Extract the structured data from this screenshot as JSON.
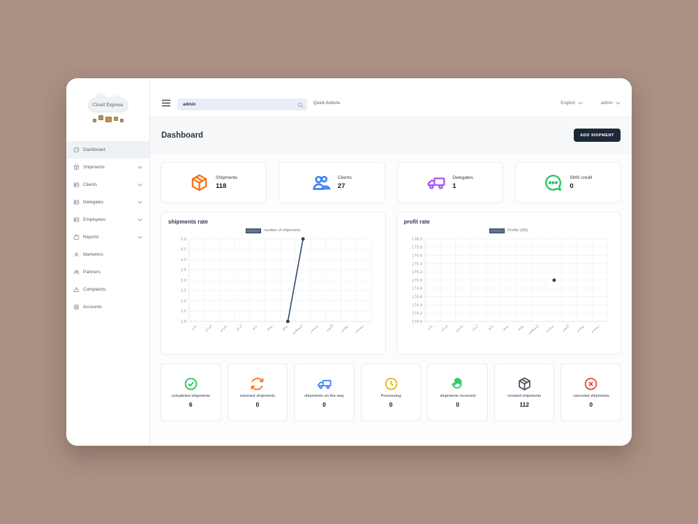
{
  "app": {
    "logo_text": "Cloud Express"
  },
  "topbar": {
    "search_value": "admin",
    "quick_actions_label": "Quick Actions",
    "language_label": "English",
    "user_label": "admin"
  },
  "sidebar": {
    "items": [
      {
        "label": "Dashboard",
        "icon": "dashboard-icon",
        "active": true,
        "has_submenu": false
      },
      {
        "label": "Shipments",
        "icon": "package-icon",
        "active": false,
        "has_submenu": true
      },
      {
        "label": "Clients",
        "icon": "id-card-icon",
        "active": false,
        "has_submenu": true
      },
      {
        "label": "Delegates",
        "icon": "id-card-icon",
        "active": false,
        "has_submenu": true
      },
      {
        "label": "Employees",
        "icon": "id-card-icon",
        "active": false,
        "has_submenu": true
      },
      {
        "label": "Reports",
        "icon": "briefcase-icon",
        "active": false,
        "has_submenu": true
      },
      {
        "label": "Marketers",
        "icon": "person-icon",
        "active": false,
        "has_submenu": false
      },
      {
        "label": "Partners",
        "icon": "users-icon",
        "active": false,
        "has_submenu": false
      },
      {
        "label": "Complaints",
        "icon": "warning-icon",
        "active": false,
        "has_submenu": false
      },
      {
        "label": "Accounts",
        "icon": "coins-icon",
        "active": false,
        "has_submenu": false
      }
    ]
  },
  "page_header": {
    "title": "Dashboard",
    "add_shipment_label": "ADD SHIPMENT",
    "add_button_color": "#1d2939"
  },
  "stat_cards": [
    {
      "label": "Shipments",
      "value": "118",
      "icon": "package-icon",
      "color": "#f97316"
    },
    {
      "label": "Clients",
      "value": "27",
      "icon": "users-icon",
      "color": "#3b82f6"
    },
    {
      "label": "Delegates",
      "value": "1",
      "icon": "truck-icon",
      "color": "#a855f7"
    },
    {
      "label": "SMS credit",
      "value": "0",
      "icon": "message-circle-icon",
      "color": "#22c55e"
    }
  ],
  "chart_data": [
    {
      "type": "line",
      "title": "shipments rate",
      "legend": "number of shipments",
      "legend_position": "top",
      "legend_color": "#64748b",
      "color": "#33476b",
      "grid": true,
      "xlabel": "",
      "ylabel": "",
      "categories": [
        "يناير",
        "فبراير",
        "مارس",
        "أبريل",
        "مايو",
        "يونيو",
        "يوليو",
        "أغسطس",
        "سبتمبر",
        "أكتوبر",
        "نوفمبر",
        "ديسمبر"
      ],
      "values": [
        null,
        null,
        null,
        null,
        null,
        null,
        1,
        5,
        null,
        null,
        null,
        null
      ],
      "yticks": [
        5.0,
        4.5,
        4.0,
        3.5,
        3.0,
        2.5,
        2.0,
        1.5,
        1.0
      ],
      "ylim": [
        1.0,
        5.0
      ]
    },
    {
      "type": "line",
      "title": "profit rate",
      "legend": "Profits (SR)",
      "legend_position": "top",
      "legend_color": "#64748b",
      "color": "#33476b",
      "grid": true,
      "xlabel": "",
      "ylabel": "",
      "categories": [
        "يناير",
        "فبراير",
        "مارس",
        "أبريل",
        "مايو",
        "يونيو",
        "يوليو",
        "أغسطس",
        "سبتمبر",
        "أكتوبر",
        "نوفمبر",
        "ديسمبر"
      ],
      "values": [
        null,
        null,
        null,
        null,
        null,
        null,
        null,
        null,
        175.0,
        null,
        null,
        null
      ],
      "yticks": [
        176.0,
        175.8,
        175.6,
        175.4,
        175.2,
        175.0,
        174.8,
        174.6,
        174.4,
        174.2,
        174.0
      ],
      "ylim": [
        174.0,
        176.0
      ]
    }
  ],
  "status_cards": [
    {
      "label": "completed shipments",
      "value": "6",
      "icon": "check-circle-icon",
      "color": "#22c55e"
    },
    {
      "label": "returned shipments",
      "value": "0",
      "icon": "refresh-icon",
      "color": "#f97316"
    },
    {
      "label": "shipments on the way",
      "value": "0",
      "icon": "truck-icon",
      "color": "#3b82f6"
    },
    {
      "label": "Processing",
      "value": "0",
      "icon": "clock-icon",
      "color": "#eab308"
    },
    {
      "label": "shipments received",
      "value": "0",
      "icon": "hand-icon",
      "color": "#22c55e"
    },
    {
      "label": "created shipments",
      "value": "112",
      "icon": "box-icon",
      "color": "#4b5563"
    },
    {
      "label": "canceled shipments",
      "value": "0",
      "icon": "x-circle-icon",
      "color": "#ef4444"
    }
  ],
  "colors": {
    "page_background": "#ab9084",
    "accent_dark": "#1d2939",
    "chart_line": "#33476b"
  }
}
